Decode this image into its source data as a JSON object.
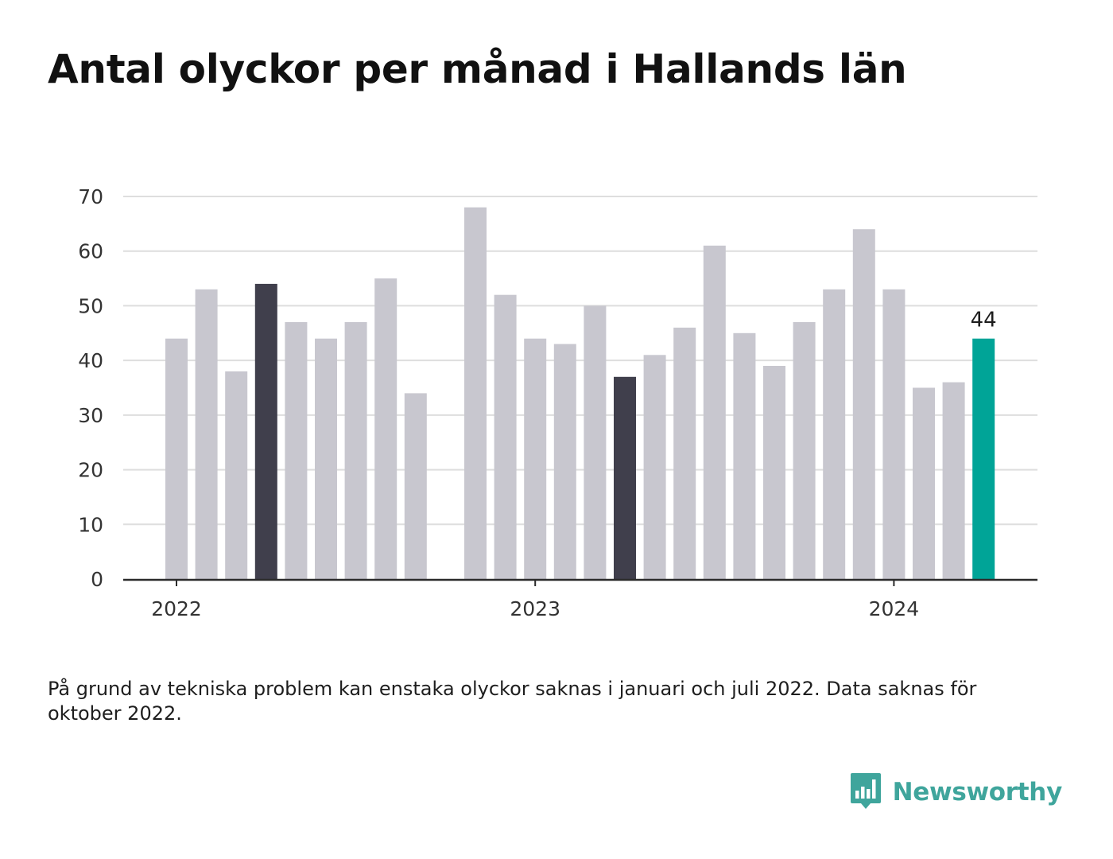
{
  "title": "Antal olyckor per månad i Hallands län",
  "note": "På grund av tekniska problem kan enstaka olyckor saknas i januari och juli 2022. Data saknas för oktober 2022.",
  "brand": {
    "name": "Newsworthy",
    "logo_icon": "bar-chart-speech-bubble-icon"
  },
  "colors": {
    "bar_default": "#c8c7cf",
    "bar_highlight": "#403f4c",
    "bar_latest": "#00a497",
    "gridline": "#dedede",
    "axis": "#2b2b2b",
    "brand": "#3fa59c"
  },
  "chart_data": {
    "type": "bar",
    "title": "Antal olyckor per månad i Hallands län",
    "xlabel": "",
    "ylabel": "",
    "ylim": [
      0,
      70
    ],
    "yticks": [
      0,
      10,
      20,
      30,
      40,
      50,
      60,
      70
    ],
    "grid": true,
    "legend": "none",
    "x_tick_labels": [
      {
        "label": "2022",
        "at": "2022-01"
      },
      {
        "label": "2023",
        "at": "2023-01"
      },
      {
        "label": "2024",
        "at": "2024-01"
      }
    ],
    "data_label": {
      "month": "2024-04",
      "text": "44"
    },
    "points": [
      {
        "month": "2022-01",
        "value": 44,
        "style": "default"
      },
      {
        "month": "2022-02",
        "value": 53,
        "style": "default"
      },
      {
        "month": "2022-03",
        "value": 38,
        "style": "default"
      },
      {
        "month": "2022-04",
        "value": 54,
        "style": "highlight"
      },
      {
        "month": "2022-05",
        "value": 47,
        "style": "default"
      },
      {
        "month": "2022-06",
        "value": 44,
        "style": "default"
      },
      {
        "month": "2022-07",
        "value": 47,
        "style": "default"
      },
      {
        "month": "2022-08",
        "value": 55,
        "style": "default"
      },
      {
        "month": "2022-09",
        "value": 34,
        "style": "default"
      },
      {
        "month": "2022-10",
        "value": null,
        "style": "missing"
      },
      {
        "month": "2022-11",
        "value": 68,
        "style": "default"
      },
      {
        "month": "2022-12",
        "value": 52,
        "style": "default"
      },
      {
        "month": "2023-01",
        "value": 44,
        "style": "default"
      },
      {
        "month": "2023-02",
        "value": 43,
        "style": "default"
      },
      {
        "month": "2023-03",
        "value": 50,
        "style": "default"
      },
      {
        "month": "2023-04",
        "value": 37,
        "style": "highlight"
      },
      {
        "month": "2023-05",
        "value": 41,
        "style": "default"
      },
      {
        "month": "2023-06",
        "value": 46,
        "style": "default"
      },
      {
        "month": "2023-07",
        "value": 61,
        "style": "default"
      },
      {
        "month": "2023-08",
        "value": 45,
        "style": "default"
      },
      {
        "month": "2023-09",
        "value": 39,
        "style": "default"
      },
      {
        "month": "2023-10",
        "value": 47,
        "style": "default"
      },
      {
        "month": "2023-11",
        "value": 53,
        "style": "default"
      },
      {
        "month": "2023-12",
        "value": 64,
        "style": "default"
      },
      {
        "month": "2024-01",
        "value": 53,
        "style": "default"
      },
      {
        "month": "2024-02",
        "value": 35,
        "style": "default"
      },
      {
        "month": "2024-03",
        "value": 36,
        "style": "default"
      },
      {
        "month": "2024-04",
        "value": 44,
        "style": "latest"
      }
    ]
  }
}
